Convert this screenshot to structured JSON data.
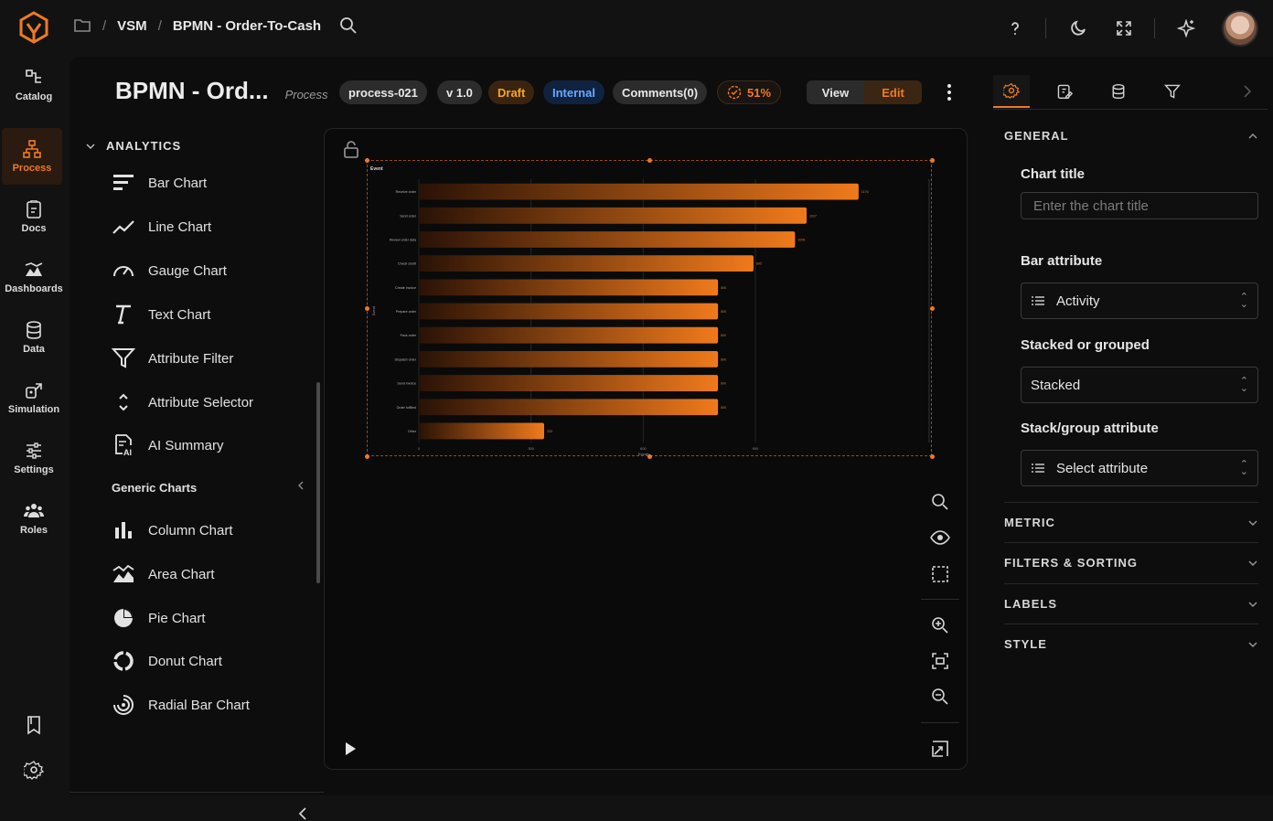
{
  "app": {
    "breadcrumbs": [
      "VSM",
      "BPMN - Order-To-Cash"
    ]
  },
  "rail": [
    {
      "label": "Catalog",
      "icon": "catalog-icon"
    },
    {
      "label": "Process",
      "icon": "process-icon",
      "active": true
    },
    {
      "label": "Docs",
      "icon": "docs-icon"
    },
    {
      "label": "Dashboards",
      "icon": "dashboards-icon"
    },
    {
      "label": "Data",
      "icon": "data-icon"
    },
    {
      "label": "Simulation",
      "icon": "simulation-icon"
    },
    {
      "label": "Settings",
      "icon": "settings-icon"
    },
    {
      "label": "Roles",
      "icon": "roles-icon"
    }
  ],
  "header": {
    "title": "BPMN - Ord...",
    "subtitle": "Process",
    "chips": {
      "id": "process-021",
      "version": "v 1.0",
      "status": "Draft",
      "visibility": "Internal",
      "comments": "Comments(0)",
      "progress": "51%"
    },
    "mode": {
      "view": "View",
      "edit": "Edit",
      "selected": "Edit"
    }
  },
  "panel": {
    "section": "ANALYTICS",
    "items": [
      {
        "label": "Bar Chart",
        "icon": "bar-chart-icon"
      },
      {
        "label": "Line Chart",
        "icon": "line-chart-icon"
      },
      {
        "label": "Gauge Chart",
        "icon": "gauge-icon"
      },
      {
        "label": "Text Chart",
        "icon": "text-icon"
      },
      {
        "label": "Attribute Filter",
        "icon": "filter-icon"
      },
      {
        "label": "Attribute Selector",
        "icon": "selector-icon"
      },
      {
        "label": "AI Summary",
        "icon": "ai-summary-icon"
      }
    ],
    "generic_heading": "Generic Charts",
    "generic_items": [
      {
        "label": "Column Chart",
        "icon": "column-chart-icon"
      },
      {
        "label": "Area Chart",
        "icon": "area-chart-icon"
      },
      {
        "label": "Pie Chart",
        "icon": "pie-chart-icon"
      },
      {
        "label": "Donut Chart",
        "icon": "donut-chart-icon"
      },
      {
        "label": "Radial Bar Chart",
        "icon": "radial-bar-icon"
      }
    ]
  },
  "chart_data": {
    "type": "bar",
    "orientation": "horizontal",
    "title": "Event",
    "xlabel": "Events",
    "ylabel": "Event",
    "categories": [
      "Receive order",
      "Send order",
      "Review order data",
      "Check credit",
      "Create invoice",
      "Prepare order",
      "Pack order",
      "Dispatch order",
      "Send invoice",
      "Order fulfilled",
      "Other"
    ],
    "values": [
      1176,
      1037,
      1006,
      895,
      800,
      800,
      800,
      800,
      800,
      800,
      335
    ],
    "xlim": [
      0,
      1350
    ],
    "xticks": [
      0,
      300,
      600,
      900
    ],
    "grid": true,
    "bar_color_from": "#2a1206",
    "bar_color_to": "#f07a1c"
  },
  "rightpanel": {
    "general": "GENERAL",
    "chart_title_label": "Chart title",
    "chart_title_placeholder": "Enter the chart title",
    "bar_attr_label": "Bar attribute",
    "bar_attr_value": "Activity",
    "stacked_label": "Stacked or grouped",
    "stacked_value": "Stacked",
    "stack_attr_label": "Stack/group attribute",
    "stack_attr_value": "Select attribute",
    "sections": [
      "METRIC",
      "FILTERS & SORTING",
      "LABELS",
      "STYLE"
    ]
  },
  "colors": {
    "accent": "#ef7a24",
    "draft_bg": "#3a2410",
    "draft_fg": "#f5a623",
    "internal_bg": "#0f2340",
    "internal_fg": "#6aa8ff"
  }
}
